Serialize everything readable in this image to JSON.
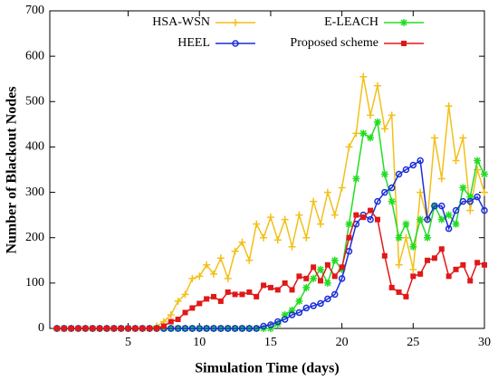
{
  "chart_data": {
    "type": "line",
    "x_label": "Simulation Time (days)",
    "y_label": "Number of Blackout Nodes",
    "x": [
      0,
      0.5,
      1,
      1.5,
      2,
      2.5,
      3,
      3.5,
      4,
      4.5,
      5,
      5.5,
      6,
      6.5,
      7,
      7.5,
      8,
      8.5,
      9,
      9.5,
      10,
      10.5,
      11,
      11.5,
      12,
      12.5,
      13,
      13.5,
      14,
      14.5,
      15,
      15.5,
      16,
      16.5,
      17,
      17.5,
      18,
      18.5,
      19,
      19.5,
      20,
      20.5,
      21,
      21.5,
      22,
      22.5,
      23,
      23.5,
      24,
      24.5,
      25,
      25.5,
      26,
      26.5,
      27,
      27.5,
      28,
      28.5,
      29,
      29.5,
      30
    ],
    "series": [
      {
        "name": "HSA-WSN",
        "color": "#f2c018",
        "marker": "plus",
        "values": [
          0,
          0,
          0,
          0,
          0,
          0,
          0,
          0,
          0,
          0,
          0,
          0,
          0,
          0,
          5,
          15,
          30,
          60,
          75,
          110,
          115,
          140,
          120,
          155,
          110,
          170,
          190,
          150,
          230,
          200,
          245,
          195,
          240,
          180,
          250,
          200,
          280,
          230,
          300,
          250,
          310,
          400,
          430,
          555,
          470,
          535,
          440,
          470,
          140,
          200,
          130,
          300,
          240,
          420,
          330,
          490,
          370,
          420,
          260,
          350,
          300
        ]
      },
      {
        "name": "E-LEACH",
        "color": "#22dd22",
        "marker": "star",
        "values": [
          0,
          0,
          0,
          0,
          0,
          0,
          0,
          0,
          0,
          0,
          0,
          0,
          0,
          0,
          0,
          0,
          0,
          0,
          0,
          0,
          0,
          0,
          0,
          0,
          0,
          0,
          0,
          0,
          0,
          0,
          0,
          10,
          30,
          40,
          60,
          90,
          110,
          130,
          100,
          150,
          130,
          230,
          330,
          430,
          420,
          455,
          340,
          280,
          200,
          230,
          180,
          240,
          200,
          270,
          240,
          250,
          230,
          310,
          290,
          370,
          340
        ]
      },
      {
        "name": "HEEL",
        "color": "#1a2ed8",
        "marker": "circle",
        "values": [
          0,
          0,
          0,
          0,
          0,
          0,
          0,
          0,
          0,
          0,
          0,
          0,
          0,
          0,
          0,
          0,
          0,
          0,
          0,
          0,
          0,
          0,
          0,
          0,
          0,
          0,
          0,
          0,
          0,
          5,
          8,
          15,
          20,
          30,
          35,
          45,
          50,
          55,
          65,
          75,
          110,
          170,
          230,
          250,
          240,
          280,
          300,
          310,
          340,
          350,
          360,
          370,
          240,
          270,
          270,
          220,
          260,
          280,
          280,
          290,
          260
        ]
      },
      {
        "name": "Proposed scheme",
        "color": "#e01818",
        "marker": "square",
        "values": [
          0,
          0,
          0,
          0,
          0,
          0,
          0,
          0,
          0,
          0,
          0,
          0,
          0,
          0,
          0,
          5,
          15,
          20,
          35,
          45,
          55,
          65,
          70,
          60,
          80,
          75,
          75,
          80,
          70,
          95,
          90,
          85,
          100,
          85,
          115,
          110,
          135,
          105,
          140,
          115,
          135,
          200,
          250,
          245,
          260,
          240,
          160,
          90,
          80,
          70,
          115,
          120,
          150,
          155,
          175,
          115,
          130,
          140,
          105,
          145,
          140
        ]
      }
    ],
    "xlim": [
      -0.5,
      30
    ],
    "xticks": [
      5,
      10,
      15,
      20,
      25,
      30
    ],
    "ylim": [
      0,
      700
    ],
    "yticks": [
      0,
      100,
      200,
      300,
      400,
      500,
      600,
      700
    ]
  }
}
